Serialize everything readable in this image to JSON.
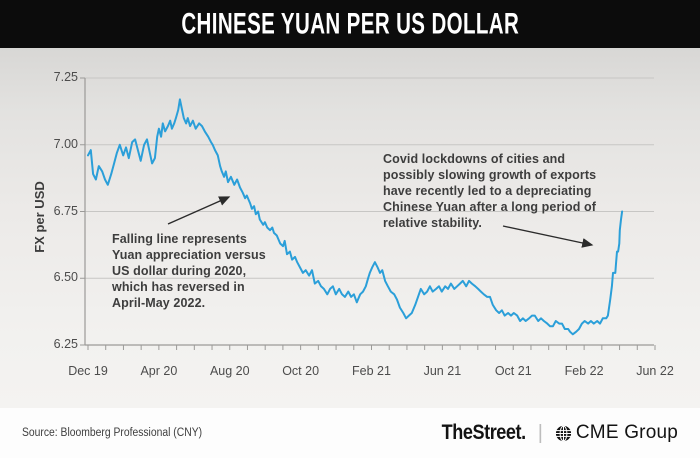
{
  "header": {
    "title": "CHINESE YUAN PER US DOLLAR"
  },
  "chart_data": {
    "type": "line",
    "title": "CHINESE YUAN PER US DOLLAR",
    "xlabel": "",
    "ylabel": "FX per USD",
    "ylim": [
      6.25,
      7.25
    ],
    "y_ticks": [
      7.25,
      7.0,
      6.75,
      6.5,
      6.25
    ],
    "x_ticks": [
      "Dec 19",
      "Apr 20",
      "Aug 20",
      "Oct 20",
      "Feb 21",
      "Jun 21",
      "Oct 21",
      "Feb 22",
      "Jun 22"
    ],
    "grid": true,
    "legend": false,
    "line_color": "#2b9fd9",
    "series": [
      {
        "name": "Chinese Yuan per US Dollar (CNY)",
        "points": [
          [
            0.0,
            6.96
          ],
          [
            0.005,
            6.98
          ],
          [
            0.009,
            6.89
          ],
          [
            0.014,
            6.87
          ],
          [
            0.019,
            6.92
          ],
          [
            0.025,
            6.9
          ],
          [
            0.03,
            6.87
          ],
          [
            0.035,
            6.85
          ],
          [
            0.041,
            6.89
          ],
          [
            0.046,
            6.93
          ],
          [
            0.051,
            6.97
          ],
          [
            0.056,
            7.0
          ],
          [
            0.062,
            6.96
          ],
          [
            0.067,
            6.99
          ],
          [
            0.072,
            6.95
          ],
          [
            0.078,
            7.01
          ],
          [
            0.083,
            7.02
          ],
          [
            0.088,
            6.98
          ],
          [
            0.093,
            6.94
          ],
          [
            0.099,
            7.0
          ],
          [
            0.104,
            7.02
          ],
          [
            0.109,
            6.97
          ],
          [
            0.113,
            6.93
          ],
          [
            0.118,
            6.95
          ],
          [
            0.122,
            7.03
          ],
          [
            0.125,
            7.06
          ],
          [
            0.129,
            7.03
          ],
          [
            0.132,
            7.08
          ],
          [
            0.136,
            7.05
          ],
          [
            0.141,
            7.07
          ],
          [
            0.145,
            7.09
          ],
          [
            0.148,
            7.06
          ],
          [
            0.152,
            7.08
          ],
          [
            0.155,
            7.1
          ],
          [
            0.159,
            7.13
          ],
          [
            0.162,
            7.17
          ],
          [
            0.166,
            7.13
          ],
          [
            0.169,
            7.1
          ],
          [
            0.173,
            7.08
          ],
          [
            0.176,
            7.1
          ],
          [
            0.18,
            7.07
          ],
          [
            0.185,
            7.09
          ],
          [
            0.19,
            7.06
          ],
          [
            0.196,
            7.08
          ],
          [
            0.201,
            7.07
          ],
          [
            0.206,
            7.05
          ],
          [
            0.212,
            7.03
          ],
          [
            0.217,
            7.01
          ],
          [
            0.22,
            7.0
          ],
          [
            0.224,
            6.98
          ],
          [
            0.229,
            6.96
          ],
          [
            0.233,
            6.92
          ],
          [
            0.236,
            6.9
          ],
          [
            0.24,
            6.88
          ],
          [
            0.243,
            6.9
          ],
          [
            0.247,
            6.86
          ],
          [
            0.252,
            6.88
          ],
          [
            0.258,
            6.85
          ],
          [
            0.263,
            6.87
          ],
          [
            0.268,
            6.84
          ],
          [
            0.273,
            6.82
          ],
          [
            0.277,
            6.8
          ],
          [
            0.28,
            6.81
          ],
          [
            0.286,
            6.78
          ],
          [
            0.289,
            6.76
          ],
          [
            0.293,
            6.77
          ],
          [
            0.296,
            6.74
          ],
          [
            0.3,
            6.75
          ],
          [
            0.303,
            6.72
          ],
          [
            0.309,
            6.7
          ],
          [
            0.312,
            6.71
          ],
          [
            0.316,
            6.69
          ],
          [
            0.321,
            6.68
          ],
          [
            0.325,
            6.69
          ],
          [
            0.328,
            6.67
          ],
          [
            0.333,
            6.66
          ],
          [
            0.339,
            6.63
          ],
          [
            0.344,
            6.62
          ],
          [
            0.347,
            6.64
          ],
          [
            0.351,
            6.59
          ],
          [
            0.356,
            6.6
          ],
          [
            0.36,
            6.57
          ],
          [
            0.365,
            6.58
          ],
          [
            0.369,
            6.56
          ],
          [
            0.374,
            6.54
          ],
          [
            0.379,
            6.52
          ],
          [
            0.384,
            6.53
          ],
          [
            0.39,
            6.51
          ],
          [
            0.395,
            6.53
          ],
          [
            0.4,
            6.48
          ],
          [
            0.406,
            6.49
          ],
          [
            0.411,
            6.47
          ],
          [
            0.416,
            6.46
          ],
          [
            0.422,
            6.44
          ],
          [
            0.427,
            6.46
          ],
          [
            0.432,
            6.47
          ],
          [
            0.437,
            6.44
          ],
          [
            0.443,
            6.46
          ],
          [
            0.448,
            6.44
          ],
          [
            0.453,
            6.43
          ],
          [
            0.459,
            6.45
          ],
          [
            0.464,
            6.43
          ],
          [
            0.469,
            6.44
          ],
          [
            0.474,
            6.41
          ],
          [
            0.48,
            6.44
          ],
          [
            0.485,
            6.45
          ],
          [
            0.49,
            6.47
          ],
          [
            0.494,
            6.5
          ],
          [
            0.497,
            6.52
          ],
          [
            0.501,
            6.54
          ],
          [
            0.506,
            6.56
          ],
          [
            0.511,
            6.54
          ],
          [
            0.515,
            6.52
          ],
          [
            0.519,
            6.53
          ],
          [
            0.524,
            6.49
          ],
          [
            0.529,
            6.47
          ],
          [
            0.534,
            6.45
          ],
          [
            0.54,
            6.44
          ],
          [
            0.545,
            6.42
          ],
          [
            0.55,
            6.39
          ],
          [
            0.556,
            6.37
          ],
          [
            0.561,
            6.35
          ],
          [
            0.566,
            6.36
          ],
          [
            0.571,
            6.37
          ],
          [
            0.577,
            6.4
          ],
          [
            0.582,
            6.43
          ],
          [
            0.587,
            6.46
          ],
          [
            0.593,
            6.44
          ],
          [
            0.598,
            6.45
          ],
          [
            0.603,
            6.47
          ],
          [
            0.608,
            6.45
          ],
          [
            0.614,
            6.46
          ],
          [
            0.619,
            6.47
          ],
          [
            0.624,
            6.45
          ],
          [
            0.63,
            6.47
          ],
          [
            0.635,
            6.46
          ],
          [
            0.64,
            6.48
          ],
          [
            0.646,
            6.46
          ],
          [
            0.651,
            6.47
          ],
          [
            0.656,
            6.48
          ],
          [
            0.661,
            6.49
          ],
          [
            0.667,
            6.47
          ],
          [
            0.672,
            6.49
          ],
          [
            0.677,
            6.48
          ],
          [
            0.683,
            6.47
          ],
          [
            0.688,
            6.46
          ],
          [
            0.693,
            6.45
          ],
          [
            0.698,
            6.44
          ],
          [
            0.704,
            6.43
          ],
          [
            0.709,
            6.43
          ],
          [
            0.714,
            6.4
          ],
          [
            0.72,
            6.38
          ],
          [
            0.725,
            6.37
          ],
          [
            0.73,
            6.38
          ],
          [
            0.735,
            6.36
          ],
          [
            0.741,
            6.37
          ],
          [
            0.746,
            6.36
          ],
          [
            0.751,
            6.37
          ],
          [
            0.757,
            6.36
          ],
          [
            0.762,
            6.34
          ],
          [
            0.767,
            6.35
          ],
          [
            0.772,
            6.34
          ],
          [
            0.778,
            6.35
          ],
          [
            0.783,
            6.36
          ],
          [
            0.788,
            6.36
          ],
          [
            0.794,
            6.34
          ],
          [
            0.799,
            6.35
          ],
          [
            0.804,
            6.34
          ],
          [
            0.81,
            6.33
          ],
          [
            0.815,
            6.32
          ],
          [
            0.82,
            6.32
          ],
          [
            0.825,
            6.34
          ],
          [
            0.831,
            6.33
          ],
          [
            0.836,
            6.33
          ],
          [
            0.841,
            6.31
          ],
          [
            0.847,
            6.31
          ],
          [
            0.85,
            6.3
          ],
          [
            0.855,
            6.29
          ],
          [
            0.861,
            6.3
          ],
          [
            0.866,
            6.31
          ],
          [
            0.871,
            6.33
          ],
          [
            0.876,
            6.34
          ],
          [
            0.882,
            6.33
          ],
          [
            0.887,
            6.34
          ],
          [
            0.892,
            6.33
          ],
          [
            0.898,
            6.34
          ],
          [
            0.903,
            6.33
          ],
          [
            0.908,
            6.35
          ],
          [
            0.914,
            6.35
          ],
          [
            0.917,
            6.36
          ],
          [
            0.921,
            6.42
          ],
          [
            0.924,
            6.47
          ],
          [
            0.926,
            6.52
          ],
          [
            0.93,
            6.52
          ],
          [
            0.931,
            6.55
          ],
          [
            0.933,
            6.6
          ],
          [
            0.935,
            6.6
          ],
          [
            0.937,
            6.63
          ],
          [
            0.938,
            6.68
          ],
          [
            0.94,
            6.72
          ],
          [
            0.942,
            6.75
          ]
        ]
      }
    ],
    "annotations": [
      "Falling line represents Yuan appreciation versus US dollar during 2020, which has reversed in April-May 2022.",
      "Covid lockdowns of cities and possibly slowing growth of exports have recently led to a depreciating Chinese Yuan after a long period of relative stability."
    ]
  },
  "annotation_left": "Falling line represents\nYuan appreciation versus\nUS dollar during 2020,\nwhich has reversed in\nApril-May 2022.",
  "annotation_right": "Covid lockdowns of cities and\npossibly slowing growth of exports\nhave recently led to a depreciating\nChinese Yuan after a long period of\nrelative stability.",
  "footer": {
    "source": "Source: Bloomberg Professional (CNY)",
    "brand_1": "TheStreet.",
    "divider": "|",
    "brand_2": "CME Group"
  },
  "colors": {
    "line": "#2b9fd9",
    "header_bg": "#0c0c0c",
    "grid": "#c7c6c4",
    "axis": "#9b9a98",
    "text": "#3d3d3d"
  }
}
